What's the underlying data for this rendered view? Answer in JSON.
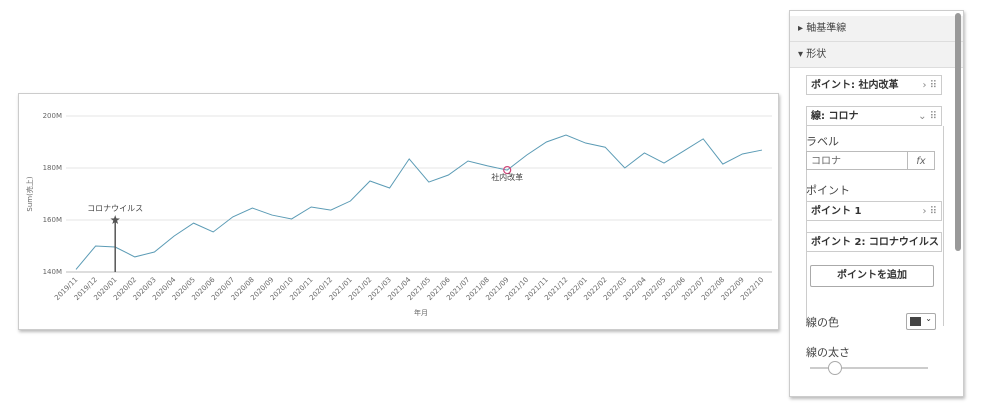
{
  "chart_data": {
    "type": "line",
    "x_label": "年月",
    "y_label": "Sum(売上)",
    "categories": [
      "2019/11",
      "2019/12",
      "2020/01",
      "2020/02",
      "2020/03",
      "2020/04",
      "2020/05",
      "2020/06",
      "2020/07",
      "2020/08",
      "2020/09",
      "2020/10",
      "2020/11",
      "2020/12",
      "2021/01",
      "2021/02",
      "2021/03",
      "2021/04",
      "2021/05",
      "2021/06",
      "2021/07",
      "2021/08",
      "2021/09",
      "2021/10",
      "2021/11",
      "2021/12",
      "2022/01",
      "2022/02",
      "2022/03",
      "2022/04",
      "2022/05",
      "2022/06",
      "2022/07",
      "2022/08",
      "2022/09",
      "2022/10"
    ],
    "series": [
      {
        "color": "#5b9bb5",
        "values": [
          141000000,
          150000000,
          149600000,
          145800000,
          147700000,
          153800000,
          158800000,
          155400000,
          161200000,
          164600000,
          161900000,
          160400000,
          165000000,
          163800000,
          167300000,
          175000000,
          172300000,
          183500000,
          174600000,
          177300000,
          182700000,
          180800000,
          179200000,
          185000000,
          190000000,
          192700000,
          189600000,
          188000000,
          180000000,
          185800000,
          181900000,
          186500000,
          191200000,
          181500000,
          185400000,
          186900000
        ]
      }
    ],
    "ylim": [
      140000000,
      200000000
    ],
    "yticks": [
      {
        "value": 140000000,
        "label": "140M"
      },
      {
        "value": 160000000,
        "label": "160M"
      },
      {
        "value": 180000000,
        "label": "180M"
      },
      {
        "value": 200000000,
        "label": "200M"
      }
    ],
    "grid": true,
    "annotations": [
      {
        "label": "コロナウイルス",
        "x": "2020/01",
        "y": 160000000,
        "color": "#555555"
      },
      {
        "label": "社内改革",
        "x": "2021/09",
        "y": 179200000,
        "color": "#d0467a"
      }
    ]
  },
  "panel": {
    "sections": [
      "軸基準線",
      "形状"
    ],
    "items": [
      "ポイント: 社内改革",
      "線: コロナ"
    ],
    "label_heading": "ラベル",
    "label_value": "コロナ",
    "fx": "fx",
    "points_heading": "ポイント",
    "points": [
      "ポイント 1",
      "ポイント 2: コロナウイルス"
    ],
    "add_button": "ポイントを追加",
    "line_color_label": "線の色",
    "line_color": "#444444",
    "line_width_label": "線の太さ"
  }
}
